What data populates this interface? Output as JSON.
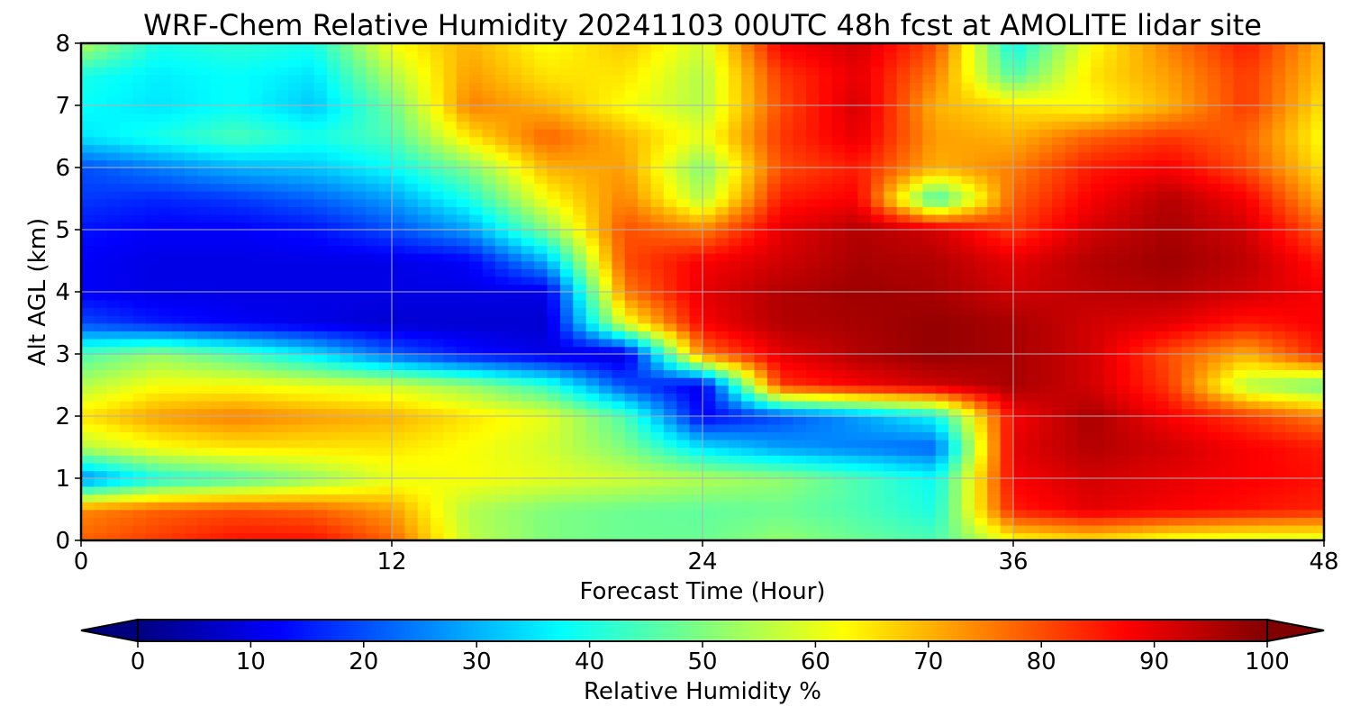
{
  "chart_data": {
    "type": "heatmap",
    "title": "WRF-Chem Relative Humidity 20241103 00UTC 48h fcst at AMOLITE lidar site",
    "xlabel": "Forecast Time (Hour)",
    "ylabel": "Alt AGL (km)",
    "xlim": [
      0,
      48
    ],
    "ylim": [
      0,
      8
    ],
    "x_ticks": [
      "0",
      "12",
      "24",
      "36",
      "48"
    ],
    "y_ticks": [
      "0",
      "1",
      "2",
      "3",
      "4",
      "5",
      "6",
      "7",
      "8"
    ],
    "grid": true,
    "colormap": "jet",
    "colorbar": {
      "label": "Relative Humidity %",
      "range": [
        0,
        100
      ],
      "ticks": [
        "0",
        "10",
        "20",
        "30",
        "40",
        "50",
        "60",
        "70",
        "80",
        "90",
        "100"
      ],
      "extend": "both",
      "orientation": "horizontal"
    },
    "x_hours": [
      0,
      3,
      6,
      9,
      12,
      15,
      18,
      21,
      24,
      27,
      30,
      33,
      36,
      39,
      42,
      45,
      48
    ],
    "y_km": [
      0,
      0.5,
      1,
      1.5,
      2,
      2.5,
      3,
      3.5,
      4,
      4.5,
      5,
      5.5,
      6,
      6.5,
      7,
      7.5,
      8
    ],
    "z_rh": [
      [
        78,
        82,
        86,
        86,
        78,
        56,
        50,
        48,
        48,
        52,
        48,
        45,
        62,
        65,
        60,
        58,
        58
      ],
      [
        74,
        78,
        80,
        78,
        72,
        55,
        50,
        48,
        47,
        48,
        45,
        40,
        85,
        90,
        88,
        86,
        84
      ],
      [
        25,
        40,
        45,
        52,
        60,
        62,
        60,
        58,
        55,
        52,
        45,
        38,
        88,
        92,
        90,
        88,
        86
      ],
      [
        55,
        62,
        65,
        65,
        65,
        62,
        58,
        50,
        35,
        28,
        25,
        22,
        90,
        95,
        92,
        88,
        85
      ],
      [
        65,
        72,
        75,
        72,
        70,
        65,
        60,
        45,
        12,
        20,
        28,
        38,
        88,
        96,
        88,
        82,
        75
      ],
      [
        55,
        62,
        62,
        60,
        58,
        52,
        42,
        20,
        10,
        82,
        88,
        92,
        96,
        92,
        82,
        55,
        48
      ],
      [
        45,
        52,
        45,
        35,
        22,
        14,
        10,
        8,
        75,
        90,
        95,
        98,
        96,
        92,
        80,
        70,
        85
      ],
      [
        20,
        15,
        12,
        10,
        8,
        8,
        8,
        60,
        88,
        95,
        96,
        98,
        96,
        92,
        90,
        85,
        88
      ],
      [
        12,
        10,
        10,
        10,
        10,
        10,
        10,
        75,
        90,
        95,
        97,
        96,
        92,
        94,
        95,
        92,
        88
      ],
      [
        12,
        10,
        10,
        10,
        10,
        12,
        30,
        80,
        88,
        92,
        96,
        95,
        90,
        95,
        97,
        94,
        85
      ],
      [
        14,
        12,
        12,
        14,
        20,
        28,
        50,
        80,
        75,
        90,
        95,
        92,
        82,
        92,
        96,
        92,
        78
      ],
      [
        18,
        16,
        18,
        22,
        28,
        40,
        62,
        75,
        55,
        85,
        88,
        42,
        78,
        88,
        95,
        88,
        70
      ],
      [
        20,
        25,
        30,
        32,
        38,
        50,
        70,
        72,
        50,
        80,
        85,
        70,
        75,
        85,
        88,
        80,
        65
      ],
      [
        35,
        40,
        45,
        40,
        45,
        65,
        78,
        70,
        60,
        82,
        90,
        72,
        70,
        78,
        82,
        78,
        62
      ],
      [
        38,
        35,
        38,
        32,
        48,
        75,
        70,
        62,
        55,
        80,
        92,
        70,
        65,
        62,
        70,
        82,
        65
      ],
      [
        40,
        36,
        38,
        35,
        55,
        72,
        65,
        65,
        55,
        82,
        90,
        75,
        45,
        65,
        72,
        82,
        68
      ],
      [
        55,
        40,
        42,
        40,
        62,
        70,
        62,
        68,
        58,
        88,
        92,
        80,
        38,
        62,
        75,
        85,
        70
      ]
    ]
  }
}
